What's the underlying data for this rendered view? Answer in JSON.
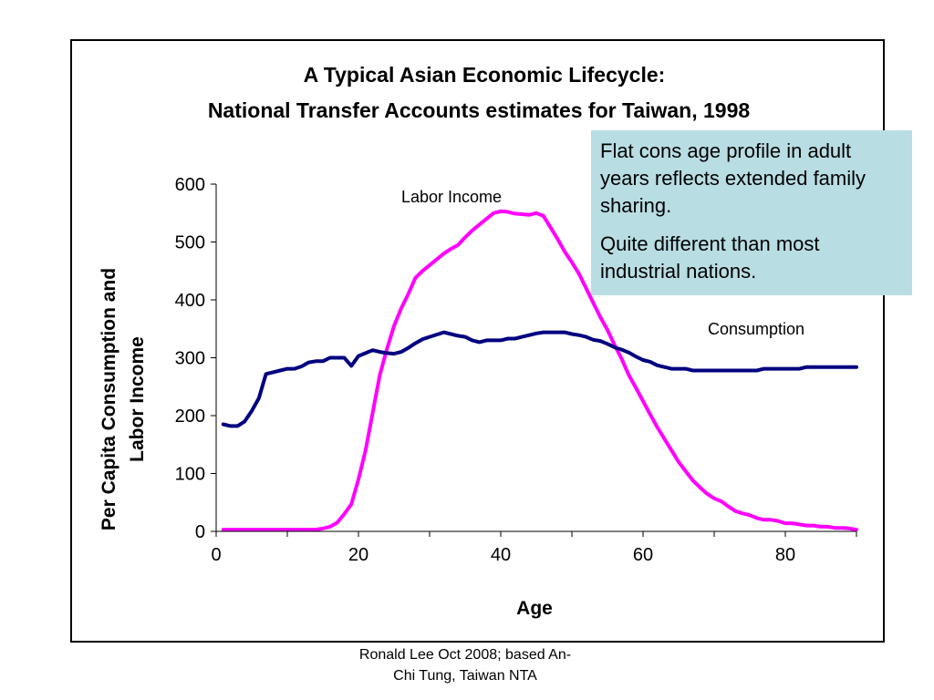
{
  "chart_data": {
    "type": "line",
    "title_line1": "A Typical Asian Economic Lifecycle:",
    "title_line2": "National Transfer Accounts estimates for Taiwan, 1998",
    "xlabel": "Age",
    "ylabel_line1": "Per Capita Consumption and",
    "ylabel_line2": "Labor Income",
    "xlim": [
      0,
      90
    ],
    "ylim": [
      0,
      600
    ],
    "xticks": [
      0,
      20,
      40,
      60,
      80
    ],
    "yticks": [
      0,
      100,
      200,
      300,
      400,
      500,
      600
    ],
    "grid": false,
    "series": [
      {
        "name": "Consumption",
        "color": "#000080",
        "x": [
          1,
          2,
          3,
          4,
          5,
          6,
          7,
          8,
          9,
          10,
          11,
          12,
          13,
          14,
          15,
          16,
          17,
          18,
          19,
          20,
          21,
          22,
          23,
          24,
          25,
          26,
          27,
          28,
          29,
          30,
          31,
          32,
          33,
          34,
          35,
          36,
          37,
          38,
          39,
          40,
          41,
          42,
          43,
          44,
          45,
          46,
          47,
          48,
          49,
          50,
          51,
          52,
          53,
          54,
          55,
          56,
          57,
          58,
          59,
          60,
          61,
          62,
          63,
          64,
          65,
          66,
          67,
          68,
          69,
          70,
          71,
          72,
          73,
          74,
          75,
          76,
          77,
          78,
          79,
          80,
          81,
          82,
          83,
          84,
          85,
          86,
          87,
          88,
          89,
          90
        ],
        "values": [
          185,
          182,
          182,
          190,
          208,
          230,
          272,
          275,
          278,
          281,
          281,
          285,
          292,
          294,
          294,
          300,
          300,
          300,
          286,
          303,
          308,
          313,
          310,
          308,
          307,
          310,
          317,
          325,
          332,
          336,
          340,
          344,
          341,
          338,
          336,
          330,
          327,
          330,
          330,
          330,
          333,
          333,
          336,
          339,
          342,
          344,
          344,
          344,
          344,
          341,
          339,
          336,
          331,
          329,
          324,
          318,
          314,
          309,
          302,
          296,
          293,
          287,
          284,
          281,
          281,
          281,
          278,
          278,
          278,
          278,
          278,
          278,
          278,
          278,
          278,
          278,
          281,
          281,
          281,
          281,
          281,
          281,
          284,
          284,
          284,
          284,
          284,
          284,
          284,
          284
        ]
      },
      {
        "name": "Labor Income",
        "color": "#ff00ff",
        "x": [
          1,
          2,
          3,
          4,
          5,
          6,
          7,
          8,
          9,
          10,
          11,
          12,
          13,
          14,
          15,
          16,
          17,
          18,
          19,
          20,
          21,
          22,
          23,
          24,
          25,
          26,
          27,
          28,
          29,
          30,
          31,
          32,
          33,
          34,
          35,
          36,
          37,
          38,
          39,
          40,
          41,
          42,
          43,
          44,
          45,
          46,
          47,
          48,
          49,
          50,
          51,
          52,
          53,
          54,
          55,
          56,
          57,
          58,
          59,
          60,
          61,
          62,
          63,
          64,
          65,
          66,
          67,
          68,
          69,
          70,
          71,
          72,
          73,
          74,
          75,
          76,
          77,
          78,
          79,
          80,
          81,
          82,
          83,
          84,
          85,
          86,
          87,
          88,
          89,
          90
        ],
        "values": [
          3,
          3,
          3,
          3,
          3,
          3,
          3,
          3,
          3,
          3,
          3,
          3,
          3,
          3,
          5,
          8,
          15,
          30,
          47,
          90,
          140,
          205,
          270,
          315,
          355,
          385,
          410,
          438,
          450,
          460,
          470,
          480,
          488,
          495,
          508,
          520,
          530,
          540,
          550,
          553,
          552,
          549,
          548,
          547,
          550,
          545,
          525,
          505,
          483,
          465,
          445,
          420,
          395,
          370,
          348,
          322,
          298,
          270,
          248,
          225,
          202,
          180,
          160,
          140,
          120,
          104,
          88,
          76,
          65,
          57,
          52,
          43,
          35,
          31,
          28,
          23,
          20,
          20,
          18,
          14,
          14,
          12,
          10,
          10,
          8,
          8,
          6,
          6,
          5,
          3
        ]
      }
    ],
    "series_label_consumption": "Consumption",
    "series_label_labor": "Labor Income"
  },
  "note": {
    "paragraph1": "Flat cons age profile in adult years reflects extended family sharing.",
    "paragraph2": "Quite different than most industrial nations."
  },
  "credit": {
    "line1": "Ronald Lee Oct 2008; based An-",
    "line2": "Chi Tung, Taiwan NTA"
  }
}
